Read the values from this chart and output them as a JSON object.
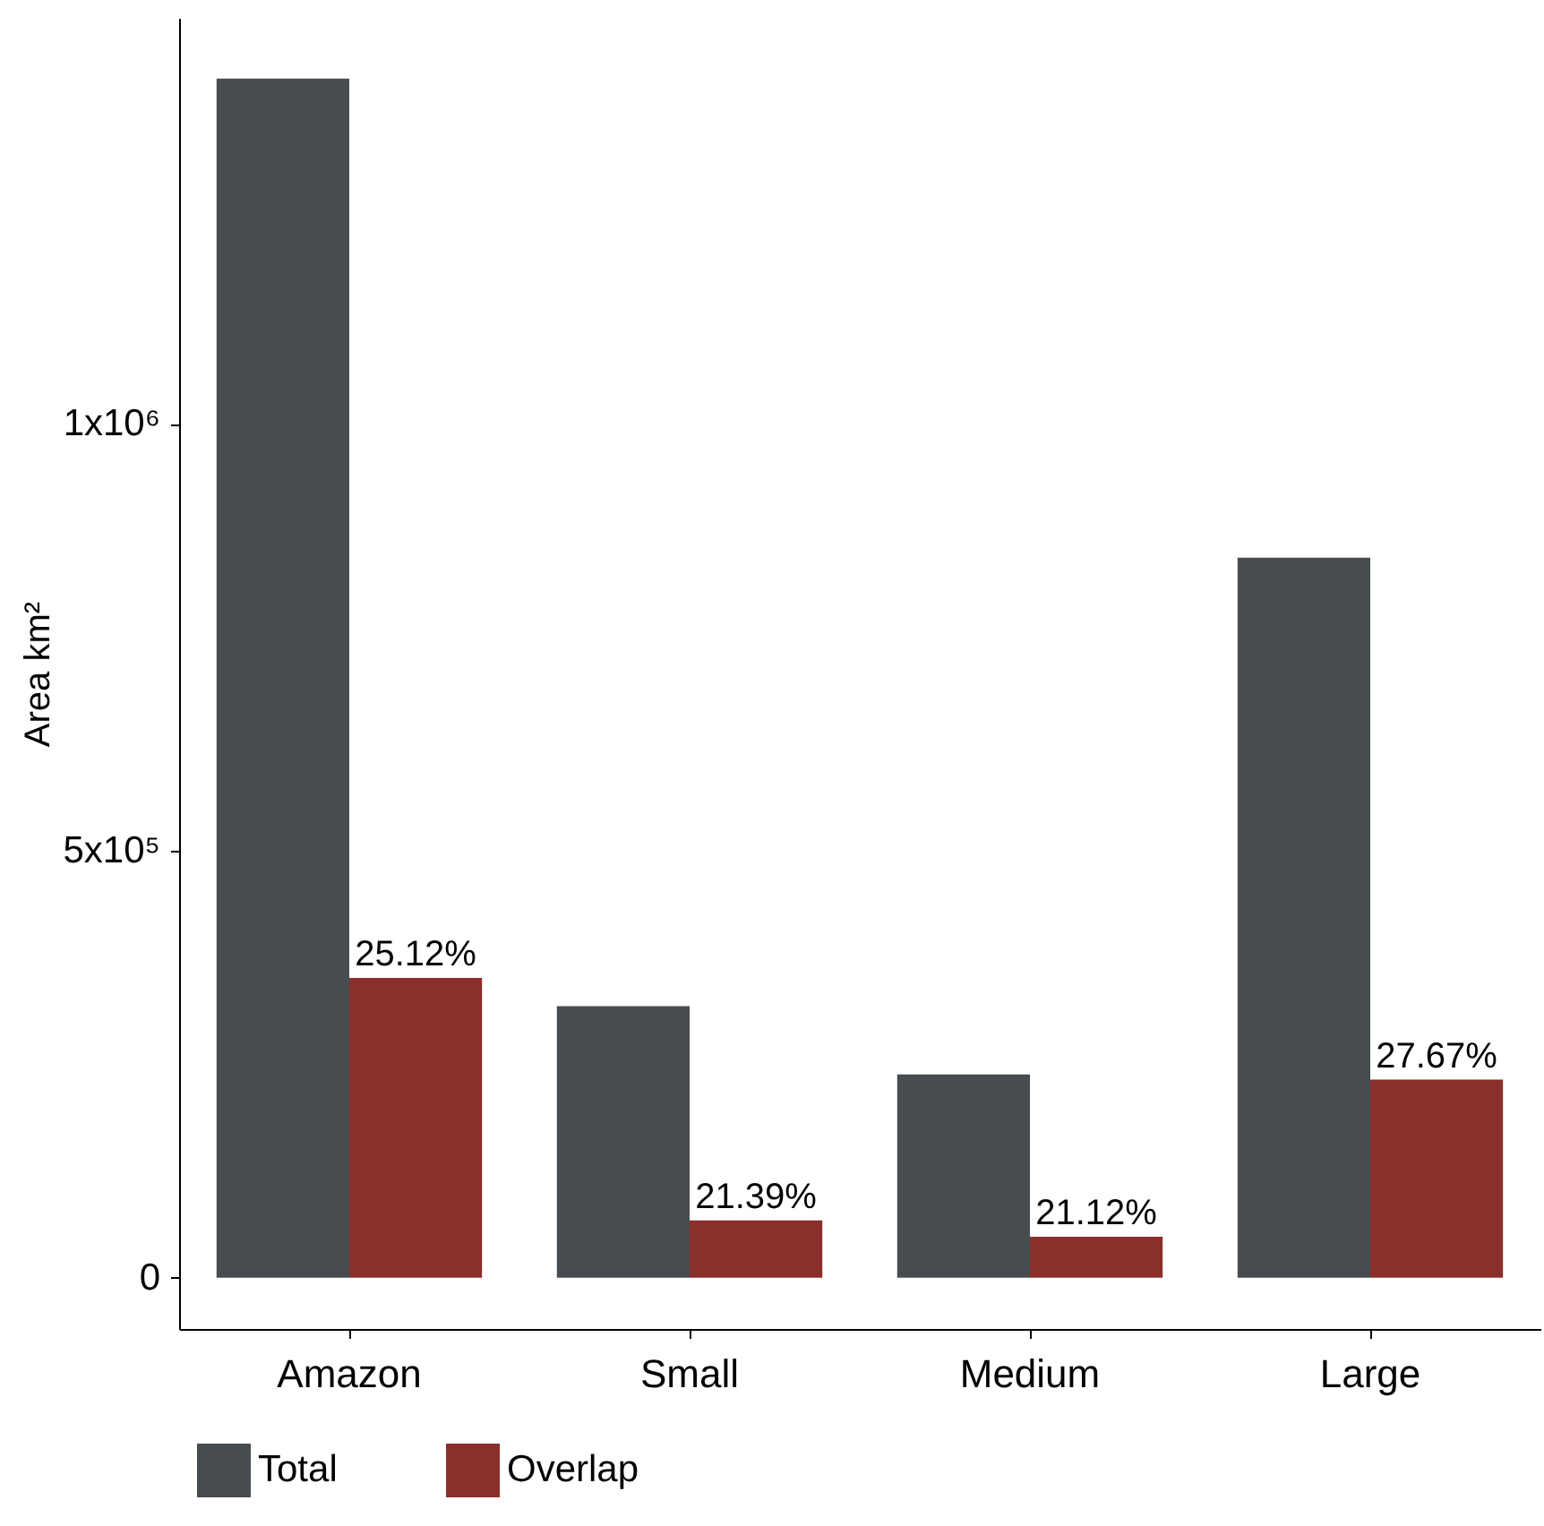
{
  "chart_data": {
    "type": "bar",
    "ylabel": "Area km²",
    "categories": [
      "Amazon",
      "Small",
      "Medium",
      "Large"
    ],
    "series": [
      {
        "name": "Total",
        "color": "#464c4f",
        "values": [
          1404000,
          318000,
          238000,
          843000
        ]
      },
      {
        "name": "Overlap",
        "color": "#8b2f2b",
        "values": [
          351000,
          67000,
          48000,
          232000
        ]
      }
    ],
    "annotations": [
      {
        "text": "25.12%",
        "x": "Amazon",
        "y": 351000
      },
      {
        "text": "21.39%",
        "x": "Small",
        "y": 67000
      },
      {
        "text": "21.12%",
        "x": "Medium",
        "y": 48000
      },
      {
        "text": "27.67%",
        "x": "Large",
        "y": 232000
      }
    ],
    "ylim": [
      -60000,
      1475000
    ],
    "yticks": [
      {
        "value": 0,
        "label": "0"
      },
      {
        "value": 500000,
        "label": "5x10⁵"
      },
      {
        "value": 1000000,
        "label": "1x10⁶"
      }
    ],
    "legend": "bottom"
  }
}
